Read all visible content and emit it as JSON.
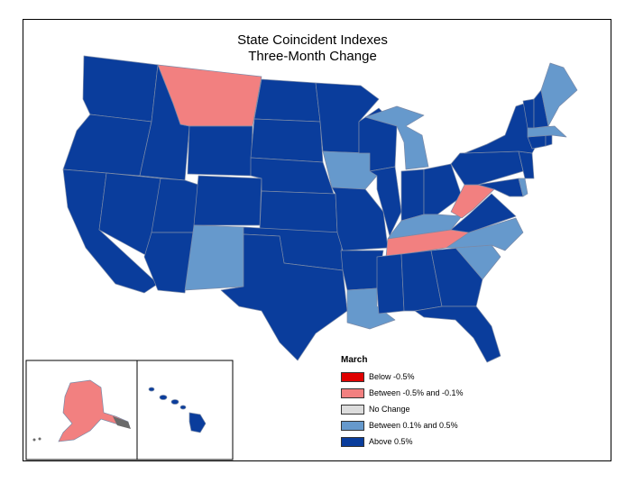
{
  "title": {
    "line1": "State Coincident Indexes",
    "line2": "Three-Month Change"
  },
  "legend": {
    "title": "March",
    "items": [
      {
        "label": "Below -0.5%",
        "color": "#e00000"
      },
      {
        "label": "Between -0.5% and -0.1%",
        "color": "#f28080"
      },
      {
        "label": "No Change",
        "color": "#dcdcdc"
      },
      {
        "label": "Between 0.1% and 0.5%",
        "color": "#6699cc"
      },
      {
        "label": "Above 0.5%",
        "color": "#0a3d9c"
      }
    ]
  },
  "categories": {
    "below": "#e00000",
    "neg": "#f28080",
    "none": "#dcdcdc",
    "pos": "#6699cc",
    "high": "#0a3d9c"
  },
  "states": {
    "MT": "neg",
    "WV": "neg",
    "TN": "neg",
    "AK": "neg",
    "NM": "pos",
    "IA": "pos",
    "MI": "pos",
    "ME": "pos",
    "MA": "pos",
    "KY": "pos",
    "NC": "pos",
    "SC": "pos",
    "LA": "pos",
    "DE": "pos",
    "WA": "high",
    "OR": "high",
    "CA": "high",
    "ID": "high",
    "NV": "high",
    "UT": "high",
    "AZ": "high",
    "WY": "high",
    "CO": "high",
    "ND": "high",
    "SD": "high",
    "NE": "high",
    "KS": "high",
    "OK": "high",
    "TX": "high",
    "MN": "high",
    "MO": "high",
    "AR": "high",
    "WI": "high",
    "IL": "high",
    "IN": "high",
    "OH": "high",
    "MS": "high",
    "AL": "high",
    "GA": "high",
    "FL": "high",
    "VA": "high",
    "MD": "high",
    "PA": "high",
    "NY": "high",
    "NJ": "high",
    "CT": "high",
    "RI": "high",
    "VT": "high",
    "NH": "high",
    "HI": "high"
  }
}
